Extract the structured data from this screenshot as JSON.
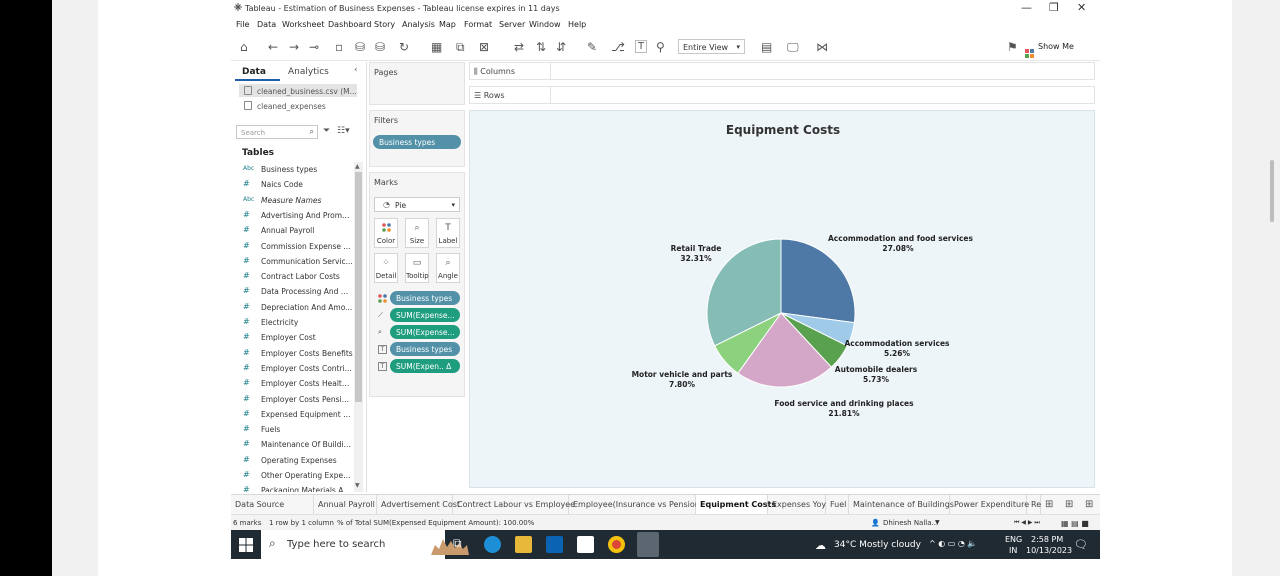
{
  "window": {
    "title": "Tableau - Estimation of Business Expenses - Tableau license expires in 11 days",
    "controls": [
      "—",
      "❐",
      "✕"
    ]
  },
  "menu": [
    "File",
    "Data",
    "Worksheet",
    "Dashboard",
    "Story",
    "Analysis",
    "Map",
    "Format",
    "Server",
    "Window",
    "Help"
  ],
  "toolbar": {
    "fit_select": "Entire View",
    "show_me": "Show Me"
  },
  "datapane": {
    "tab_data": "Data",
    "tab_analytics": "Analytics",
    "sources": [
      "cleaned_business.csv (M...",
      "cleaned_expenses"
    ],
    "search_placeholder": "Search",
    "tables_heading": "Tables",
    "fields": [
      {
        "type": "Abc",
        "name": "Business types",
        "italic": false
      },
      {
        "type": "#",
        "name": "Naics Code",
        "italic": false
      },
      {
        "type": "Abc",
        "name": "Measure Names",
        "italic": true
      },
      {
        "type": "#",
        "name": "Advertising And Promo...",
        "italic": false
      },
      {
        "type": "#",
        "name": "Annual Payroll",
        "italic": false
      },
      {
        "type": "#",
        "name": "Commission Expense ...",
        "italic": false
      },
      {
        "type": "#",
        "name": "Communication Servic...",
        "italic": false
      },
      {
        "type": "#",
        "name": "Contract Labor Costs",
        "italic": false
      },
      {
        "type": "#",
        "name": "Data Processing And C...",
        "italic": false
      },
      {
        "type": "#",
        "name": "Depreciation And Amo...",
        "italic": false
      },
      {
        "type": "#",
        "name": "Electricity",
        "italic": false
      },
      {
        "type": "#",
        "name": "Employer Cost",
        "italic": false
      },
      {
        "type": "#",
        "name": "Employer Costs Benefits",
        "italic": false
      },
      {
        "type": "#",
        "name": "Employer Costs Contri...",
        "italic": false
      },
      {
        "type": "#",
        "name": "Employer Costs Health...",
        "italic": false
      },
      {
        "type": "#",
        "name": "Employer Costs Pensio...",
        "italic": false
      },
      {
        "type": "#",
        "name": "Expensed Equipment A...",
        "italic": false
      },
      {
        "type": "#",
        "name": "Fuels",
        "italic": false
      },
      {
        "type": "#",
        "name": "Maintenance Of Buildin...",
        "italic": false
      },
      {
        "type": "#",
        "name": "Operating Expenses",
        "italic": false
      },
      {
        "type": "#",
        "name": "Other Operating Expen...",
        "italic": false
      },
      {
        "type": "#",
        "name": "Packaging Materials A...",
        "italic": false
      }
    ]
  },
  "cards": {
    "pages": "Pages",
    "filters": "Filters",
    "filter_pill": "Business types",
    "marks": "Marks",
    "mark_type": "Pie",
    "mark_buttons": [
      "Color",
      "Size",
      "Label",
      "Detail",
      "Tooltip",
      "Angle"
    ],
    "mark_pills": [
      {
        "label": "Business types",
        "kind": "dim"
      },
      {
        "label": "SUM(Expense...",
        "kind": "meas"
      },
      {
        "label": "SUM(Expense...",
        "kind": "meas"
      },
      {
        "label": "Business types",
        "kind": "dim"
      },
      {
        "label": "SUM(Expen.. Δ",
        "kind": "meas"
      }
    ]
  },
  "shelves": {
    "columns": "Columns",
    "rows": "Rows"
  },
  "chart_data": {
    "type": "pie",
    "title": "Equipment Costs",
    "slices": [
      {
        "label": "Accommodation and food services",
        "value": 27.08,
        "display": "27.08%",
        "color": "#4e79a7"
      },
      {
        "label": "Accommodation services",
        "value": 5.26,
        "display": "5.26%",
        "color": "#a0cbe8"
      },
      {
        "label": "Automobile dealers",
        "value": 5.73,
        "display": "5.73%",
        "color": "#59a14f"
      },
      {
        "label": "Food service and drinking places",
        "value": 21.81,
        "display": "21.81%",
        "color": "#d4a6c8"
      },
      {
        "label": "Motor vehicle and parts",
        "value": 7.8,
        "display": "7.80%",
        "color": "#8cd17d"
      },
      {
        "label": "Retail Trade",
        "value": 32.31,
        "display": "32.31%",
        "color": "#86bcb6"
      }
    ]
  },
  "sheet_tabs": [
    {
      "label": "Data Source",
      "active": false
    },
    {
      "label": "Annual Payroll",
      "active": false
    },
    {
      "label": "Advertisement Cost",
      "active": false
    },
    {
      "label": "Contrect Labour vs Employee",
      "active": false
    },
    {
      "label": "Employee(Insurance vs Pension)",
      "active": false
    },
    {
      "label": "Equipment Costs",
      "active": true
    },
    {
      "label": "Expenses Yoy",
      "active": false
    },
    {
      "label": "Fuel",
      "active": false
    },
    {
      "label": "Maintenance of Buildings",
      "active": false
    },
    {
      "label": "Power Expenditure",
      "active": false
    },
    {
      "label": "Re",
      "active": false
    }
  ],
  "status": {
    "marks": "6 marks",
    "rows_cols": "1 row by 1 column",
    "sum": "% of Total SUM(Expensed Equipment Amount): 100.00%",
    "user": "Dhinesh Nalla..."
  },
  "taskbar": {
    "search_placeholder": "Type here to search",
    "weather": "34°C  Mostly cloudy",
    "lang1": "ENG",
    "lang2": "IN",
    "time": "2:58 PM",
    "date": "10/13/2023"
  },
  "colors": {
    "accent": "#1f5ea8",
    "dim_pill": "#5291a8",
    "measure_pill": "#1f9d7f",
    "viz_bg": "#eef5f8"
  }
}
